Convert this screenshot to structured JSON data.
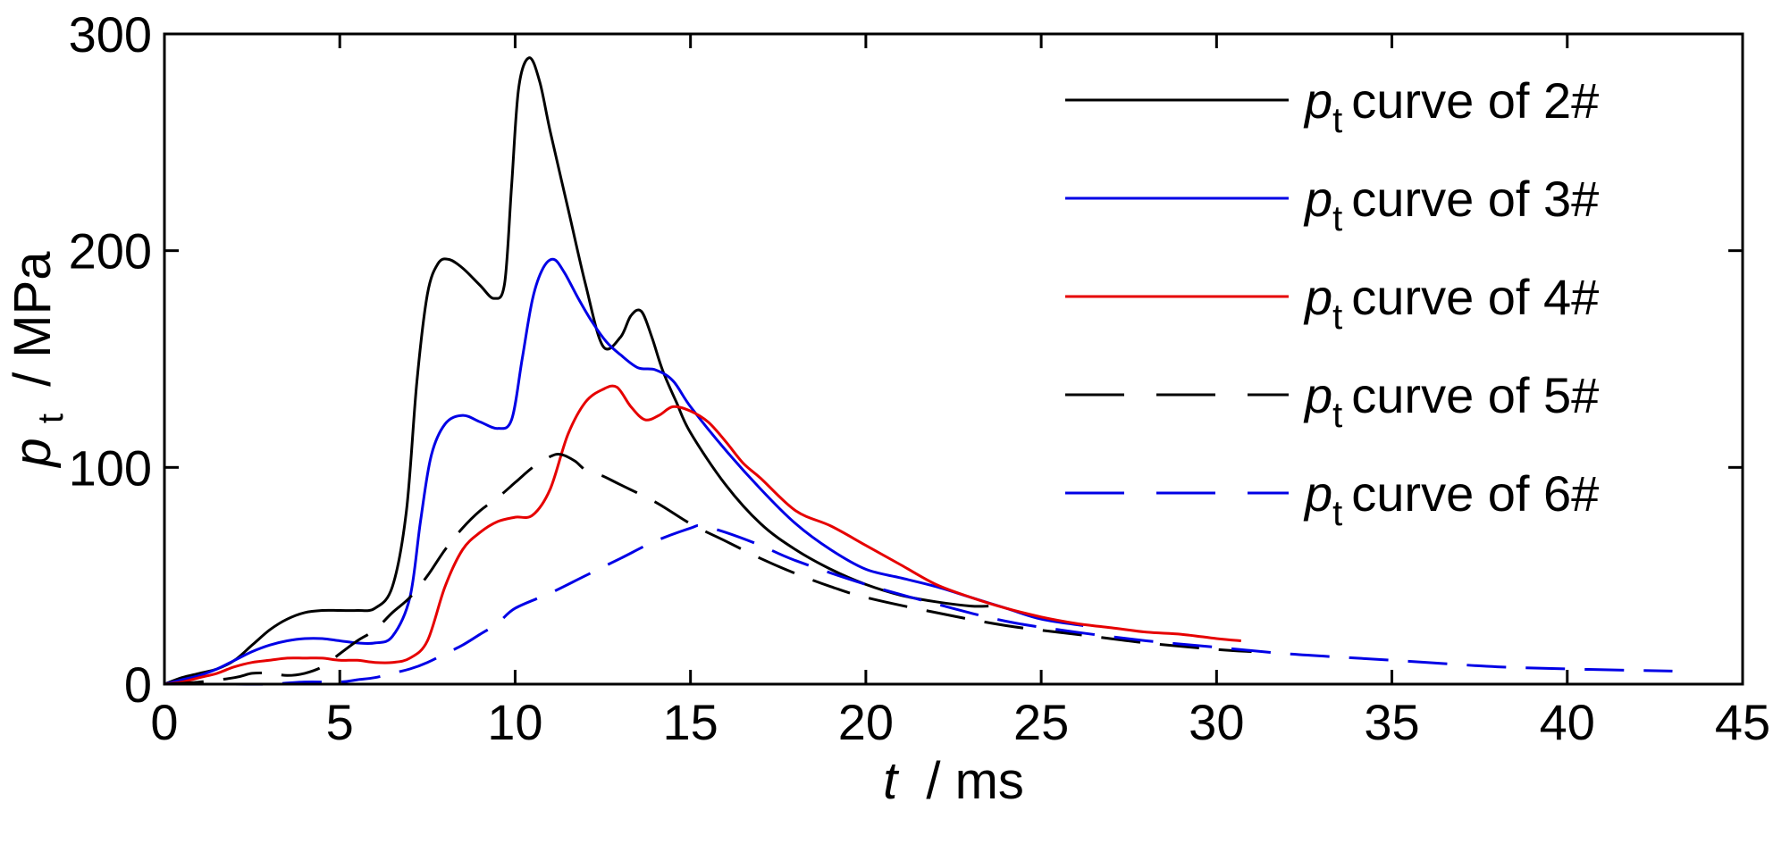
{
  "chart_data": {
    "type": "line",
    "title": "",
    "xlabel": {
      "symbol": "t",
      "unit": "/ ms"
    },
    "ylabel": {
      "symbol": "p",
      "subscript": "t",
      "unit": "/ MPa"
    },
    "xlim": [
      0,
      45
    ],
    "ylim": [
      0,
      300
    ],
    "xticks": [
      0,
      5,
      10,
      15,
      20,
      25,
      30,
      35,
      40,
      45
    ],
    "yticks": [
      0,
      100,
      200,
      300
    ],
    "grid": false,
    "legend_position": "top-right",
    "series": [
      {
        "name": "curve of  2#",
        "legend_symbol": "p",
        "legend_subscript": "t",
        "color": "#000000",
        "dash": "solid",
        "x": [
          0,
          0.5,
          1,
          1.5,
          2,
          2.5,
          3,
          3.5,
          4,
          4.5,
          5,
          5.5,
          6,
          6.5,
          6.9,
          7.2,
          7.5,
          7.8,
          8.1,
          8.5,
          9,
          9.4,
          9.7,
          9.9,
          10.1,
          10.4,
          10.7,
          11,
          11.5,
          12,
          12.5,
          13,
          13.3,
          13.6,
          13.9,
          14.2,
          14.6,
          15,
          16,
          17,
          18,
          19,
          20,
          21,
          22,
          23,
          23.5
        ],
        "y": [
          0,
          3,
          5,
          7,
          11,
          18,
          25,
          30,
          33,
          34,
          34,
          34,
          35,
          45,
          80,
          140,
          180,
          194,
          196,
          192,
          184,
          178,
          185,
          230,
          275,
          289,
          278,
          255,
          220,
          185,
          156,
          160,
          170,
          172,
          160,
          145,
          130,
          116,
          92,
          74,
          62,
          53,
          46,
          41,
          38,
          36,
          36
        ]
      },
      {
        "name": "curve of  3#",
        "legend_symbol": "p",
        "legend_subscript": "t",
        "color": "#0000e6",
        "dash": "solid",
        "x": [
          0,
          0.5,
          1,
          1.5,
          2,
          2.5,
          3,
          3.5,
          4,
          4.5,
          5,
          5.5,
          6,
          6.5,
          7,
          7.3,
          7.6,
          8,
          8.5,
          9,
          9.5,
          9.9,
          10.2,
          10.5,
          10.8,
          11.1,
          11.4,
          11.8,
          12.2,
          12.6,
          13,
          13.5,
          14,
          14.5,
          15,
          16,
          17,
          18,
          19,
          20,
          21,
          22,
          23,
          24,
          25,
          26.2
        ],
        "y": [
          0,
          2,
          4,
          7,
          11,
          15,
          18,
          20,
          21,
          21,
          20,
          19,
          19,
          22,
          40,
          75,
          105,
          120,
          124,
          121,
          118,
          122,
          150,
          178,
          192,
          196,
          190,
          178,
          167,
          158,
          152,
          146,
          145,
          140,
          128,
          108,
          90,
          74,
          62,
          53,
          49,
          45,
          40,
          35,
          30,
          27
        ]
      },
      {
        "name": "curve of  4#",
        "legend_symbol": "p",
        "legend_subscript": "t",
        "color": "#e60000",
        "dash": "solid",
        "x": [
          0,
          0.5,
          1,
          1.5,
          2,
          2.5,
          3,
          3.5,
          4,
          4.5,
          5,
          5.5,
          6,
          6.5,
          7,
          7.5,
          8,
          8.5,
          9,
          9.5,
          10,
          10.5,
          11,
          11.5,
          12,
          12.5,
          12.9,
          13.3,
          13.7,
          14.1,
          14.5,
          15,
          15.5,
          16,
          16.5,
          17,
          18,
          19,
          20,
          21,
          22,
          23,
          24,
          25,
          26,
          27,
          28,
          29,
          30,
          30.7
        ],
        "y": [
          0,
          1,
          3,
          5,
          8,
          10,
          11,
          12,
          12,
          12,
          11,
          11,
          10,
          10,
          12,
          20,
          45,
          62,
          70,
          75,
          77,
          78,
          90,
          115,
          130,
          136,
          137,
          128,
          122,
          124,
          128,
          126,
          121,
          112,
          102,
          95,
          80,
          73,
          64,
          55,
          46,
          40,
          35,
          31,
          28,
          26,
          24,
          23,
          21,
          20
        ]
      },
      {
        "name": "curve of  5#",
        "legend_symbol": "p",
        "legend_subscript": "t",
        "color": "#000000",
        "dash": "long-dash",
        "x": [
          0,
          1,
          2,
          2.5,
          3,
          3.5,
          4,
          4.5,
          5,
          5.5,
          6,
          6.5,
          7,
          7.5,
          8,
          8.5,
          9,
          9.5,
          10,
          10.5,
          11,
          11.3,
          11.7,
          12,
          12.5,
          13,
          14,
          15,
          16,
          17,
          18,
          19,
          20,
          22,
          24,
          26,
          28,
          30,
          31
        ],
        "y": [
          0,
          1,
          3,
          5,
          5,
          4,
          5,
          8,
          14,
          20,
          25,
          33,
          40,
          50,
          62,
          72,
          80,
          86,
          93,
          100,
          105,
          106,
          103,
          99,
          96,
          92,
          84,
          74,
          66,
          58,
          51,
          45,
          40,
          33,
          27,
          23,
          19,
          16,
          15
        ]
      },
      {
        "name": "curve of  6#",
        "legend_symbol": "p",
        "legend_subscript": "t",
        "color": "#0000e6",
        "dash": "long-dash",
        "x": [
          0,
          1,
          2,
          3,
          4,
          5,
          5.5,
          6,
          6.5,
          7,
          7.5,
          8,
          8.5,
          9,
          9.5,
          10,
          11,
          12,
          13,
          14,
          15,
          15.3,
          16,
          17,
          18,
          20,
          22,
          24,
          26,
          28,
          30,
          32,
          34,
          36,
          38,
          40,
          43
        ],
        "y": [
          0,
          0,
          0,
          0,
          1,
          1,
          2,
          3,
          5,
          7,
          10,
          14,
          18,
          23,
          28,
          35,
          42,
          50,
          58,
          66,
          72,
          73,
          70,
          64,
          57,
          46,
          37,
          29,
          24,
          20,
          17,
          14,
          12,
          10,
          8,
          7,
          6
        ]
      }
    ]
  }
}
